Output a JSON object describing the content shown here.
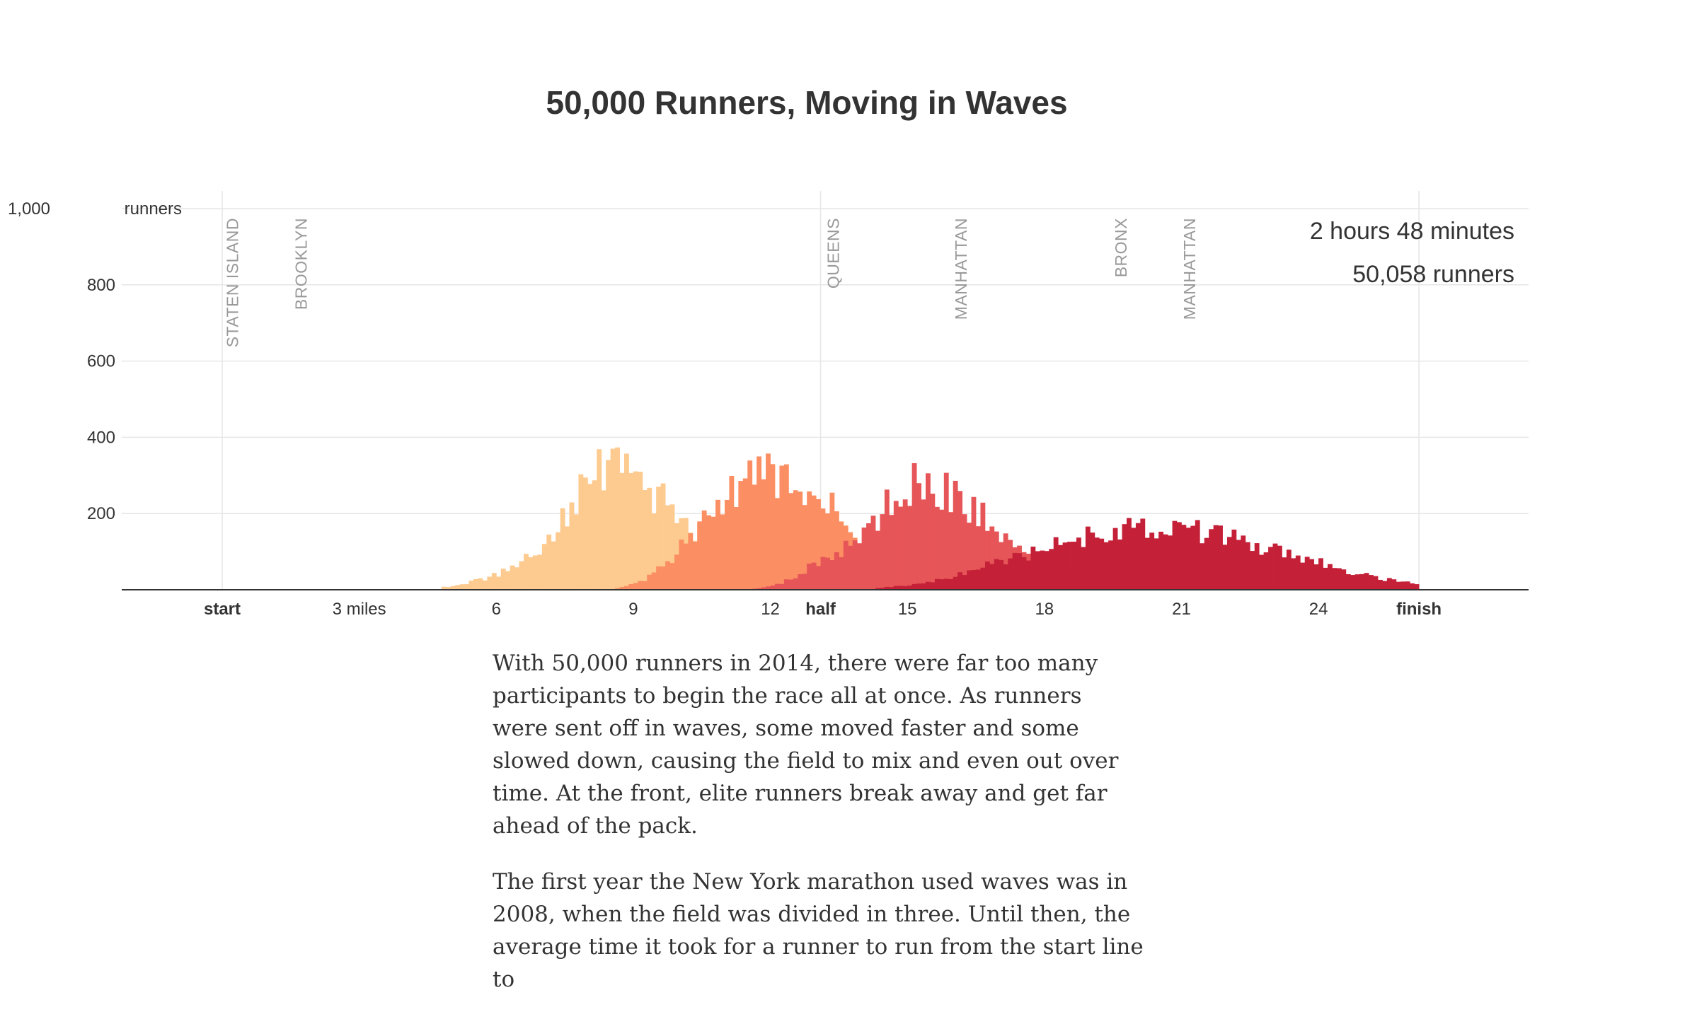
{
  "chart_data": {
    "type": "bar",
    "title": "50,000 Runners, Moving in Waves",
    "xlabel": "",
    "ylabel": "",
    "xlim": [
      -2.2,
      28.6
    ],
    "ylim": [
      0,
      1000
    ],
    "y_ticks": [
      {
        "value": 1000,
        "label": "1,000",
        "suffix": "runners"
      },
      {
        "value": 800,
        "label": "800",
        "suffix": ""
      },
      {
        "value": 600,
        "label": "600",
        "suffix": ""
      },
      {
        "value": 400,
        "label": "400",
        "suffix": ""
      },
      {
        "value": 200,
        "label": "200",
        "suffix": ""
      }
    ],
    "x_ticks": [
      {
        "value": 0,
        "label": "start",
        "bold": true
      },
      {
        "value": 3,
        "label": "3 miles",
        "bold": false
      },
      {
        "value": 6,
        "label": "6",
        "bold": false
      },
      {
        "value": 9,
        "label": "9",
        "bold": false
      },
      {
        "value": 12,
        "label": "12",
        "bold": false
      },
      {
        "value": 13.1,
        "label": "half",
        "bold": true
      },
      {
        "value": 15,
        "label": "15",
        "bold": false
      },
      {
        "value": 18,
        "label": "18",
        "bold": false
      },
      {
        "value": 21,
        "label": "21",
        "bold": false
      },
      {
        "value": 24,
        "label": "24",
        "bold": false
      },
      {
        "value": 26.2,
        "label": "finish",
        "bold": true
      }
    ],
    "vertical_gridlines_at": [
      0,
      13.1,
      26.2
    ],
    "boroughs": [
      {
        "name": "STATEN ISLAND",
        "mile": 0.35
      },
      {
        "name": "BROOKLYN",
        "mile": 1.85
      },
      {
        "name": "QUEENS",
        "mile": 13.5
      },
      {
        "name": "MANHATTAN",
        "mile": 16.3
      },
      {
        "name": "BRONX",
        "mile": 19.8
      },
      {
        "name": "MANHATTAN",
        "mile": 21.3
      }
    ],
    "stats": {
      "elapsed": "2 hours 48 minutes",
      "runners": "50,058 runners"
    },
    "bin_width_miles": 0.1,
    "series": [
      {
        "color": "#fdca8f",
        "from_mile": 4.8,
        "to_mile": 11.3,
        "peaks": [
          {
            "mile": 8.4,
            "height": 280,
            "width": 0.85
          },
          {
            "mile": 10.0,
            "height": 150,
            "width": 0.9
          },
          {
            "mile": 6.6,
            "height": 45,
            "width": 0.9
          }
        ]
      },
      {
        "color": "#fb8e63",
        "from_mile": 8.6,
        "to_mile": 14.4,
        "peaks": [
          {
            "mile": 11.9,
            "height": 265,
            "width": 0.85
          },
          {
            "mile": 10.5,
            "height": 100,
            "width": 0.75
          },
          {
            "mile": 13.3,
            "height": 150,
            "width": 0.7
          }
        ]
      },
      {
        "color": "#e65557",
        "from_mile": 11.2,
        "to_mile": 18.8,
        "peaks": [
          {
            "mile": 15.2,
            "height": 270,
            "width": 0.85
          },
          {
            "mile": 16.7,
            "height": 120,
            "width": 0.7
          },
          {
            "mile": 13.4,
            "height": 70,
            "width": 0.7
          },
          {
            "mile": 18.0,
            "height": 45,
            "width": 0.8
          }
        ]
      },
      {
        "color": "#c42139",
        "from_mile": 14.3,
        "to_mile": 26.2,
        "peaks": [
          {
            "mile": 20.2,
            "height": 150,
            "width": 2.0
          },
          {
            "mile": 23.2,
            "height": 50,
            "width": 1.8
          },
          {
            "mile": 17.2,
            "height": 30,
            "width": 1.3
          }
        ]
      }
    ]
  },
  "article": {
    "paragraphs": [
      "With 50,000 runners in 2014, there were far too many participants to begin the race all at once. As runners were sent off in waves, some moved faster and some slowed down, causing the field to mix and even out over time. At the front, elite runners break away and get far ahead of the pack.",
      "The first year the New York marathon used waves was in 2008, when the field was divided in three. Until then, the average time it took for a runner to run from the start line to"
    ]
  }
}
